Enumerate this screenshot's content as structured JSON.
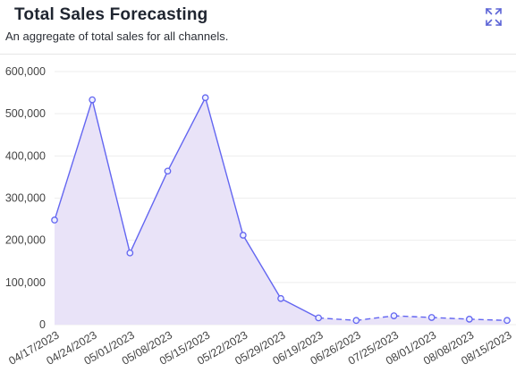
{
  "header": {
    "title": "Total Sales Forecasting",
    "subtitle": "An aggregate of total sales for all channels.",
    "expand_icon": "expand-icon"
  },
  "colors": {
    "line": "#6366f1",
    "fill": "#e9e3f8",
    "grid": "#eeeeee",
    "axis_text": "#444444",
    "point_fill": "#eef0ff"
  },
  "chart_data": {
    "type": "area",
    "title": "",
    "xlabel": "",
    "ylabel": "",
    "ylim": [
      0,
      600000
    ],
    "y_ticks": [
      0,
      100000,
      200000,
      300000,
      400000,
      500000,
      600000
    ],
    "y_tick_labels": [
      "0",
      "100,000",
      "200,000",
      "300,000",
      "400,000",
      "500,000",
      "600,000"
    ],
    "grid": true,
    "legend": "none",
    "x": [
      "04/17/2023",
      "04/24/2023",
      "05/01/2023",
      "05/08/2023",
      "05/15/2023",
      "05/22/2023",
      "05/29/2023",
      "06/19/2023",
      "06/26/2023",
      "07/25/2023",
      "08/01/2023",
      "08/08/2023",
      "08/15/2023"
    ],
    "series": [
      {
        "values": [
          248000,
          533000,
          170000,
          364000,
          538000,
          212000,
          62000,
          16000,
          10000,
          21000,
          17000,
          13000,
          10000
        ],
        "style": [
          "solid",
          "solid",
          "solid",
          "solid",
          "solid",
          "solid",
          "solid",
          "solid",
          "dashed",
          "dashed",
          "dashed",
          "dashed",
          "dashed"
        ]
      }
    ]
  }
}
